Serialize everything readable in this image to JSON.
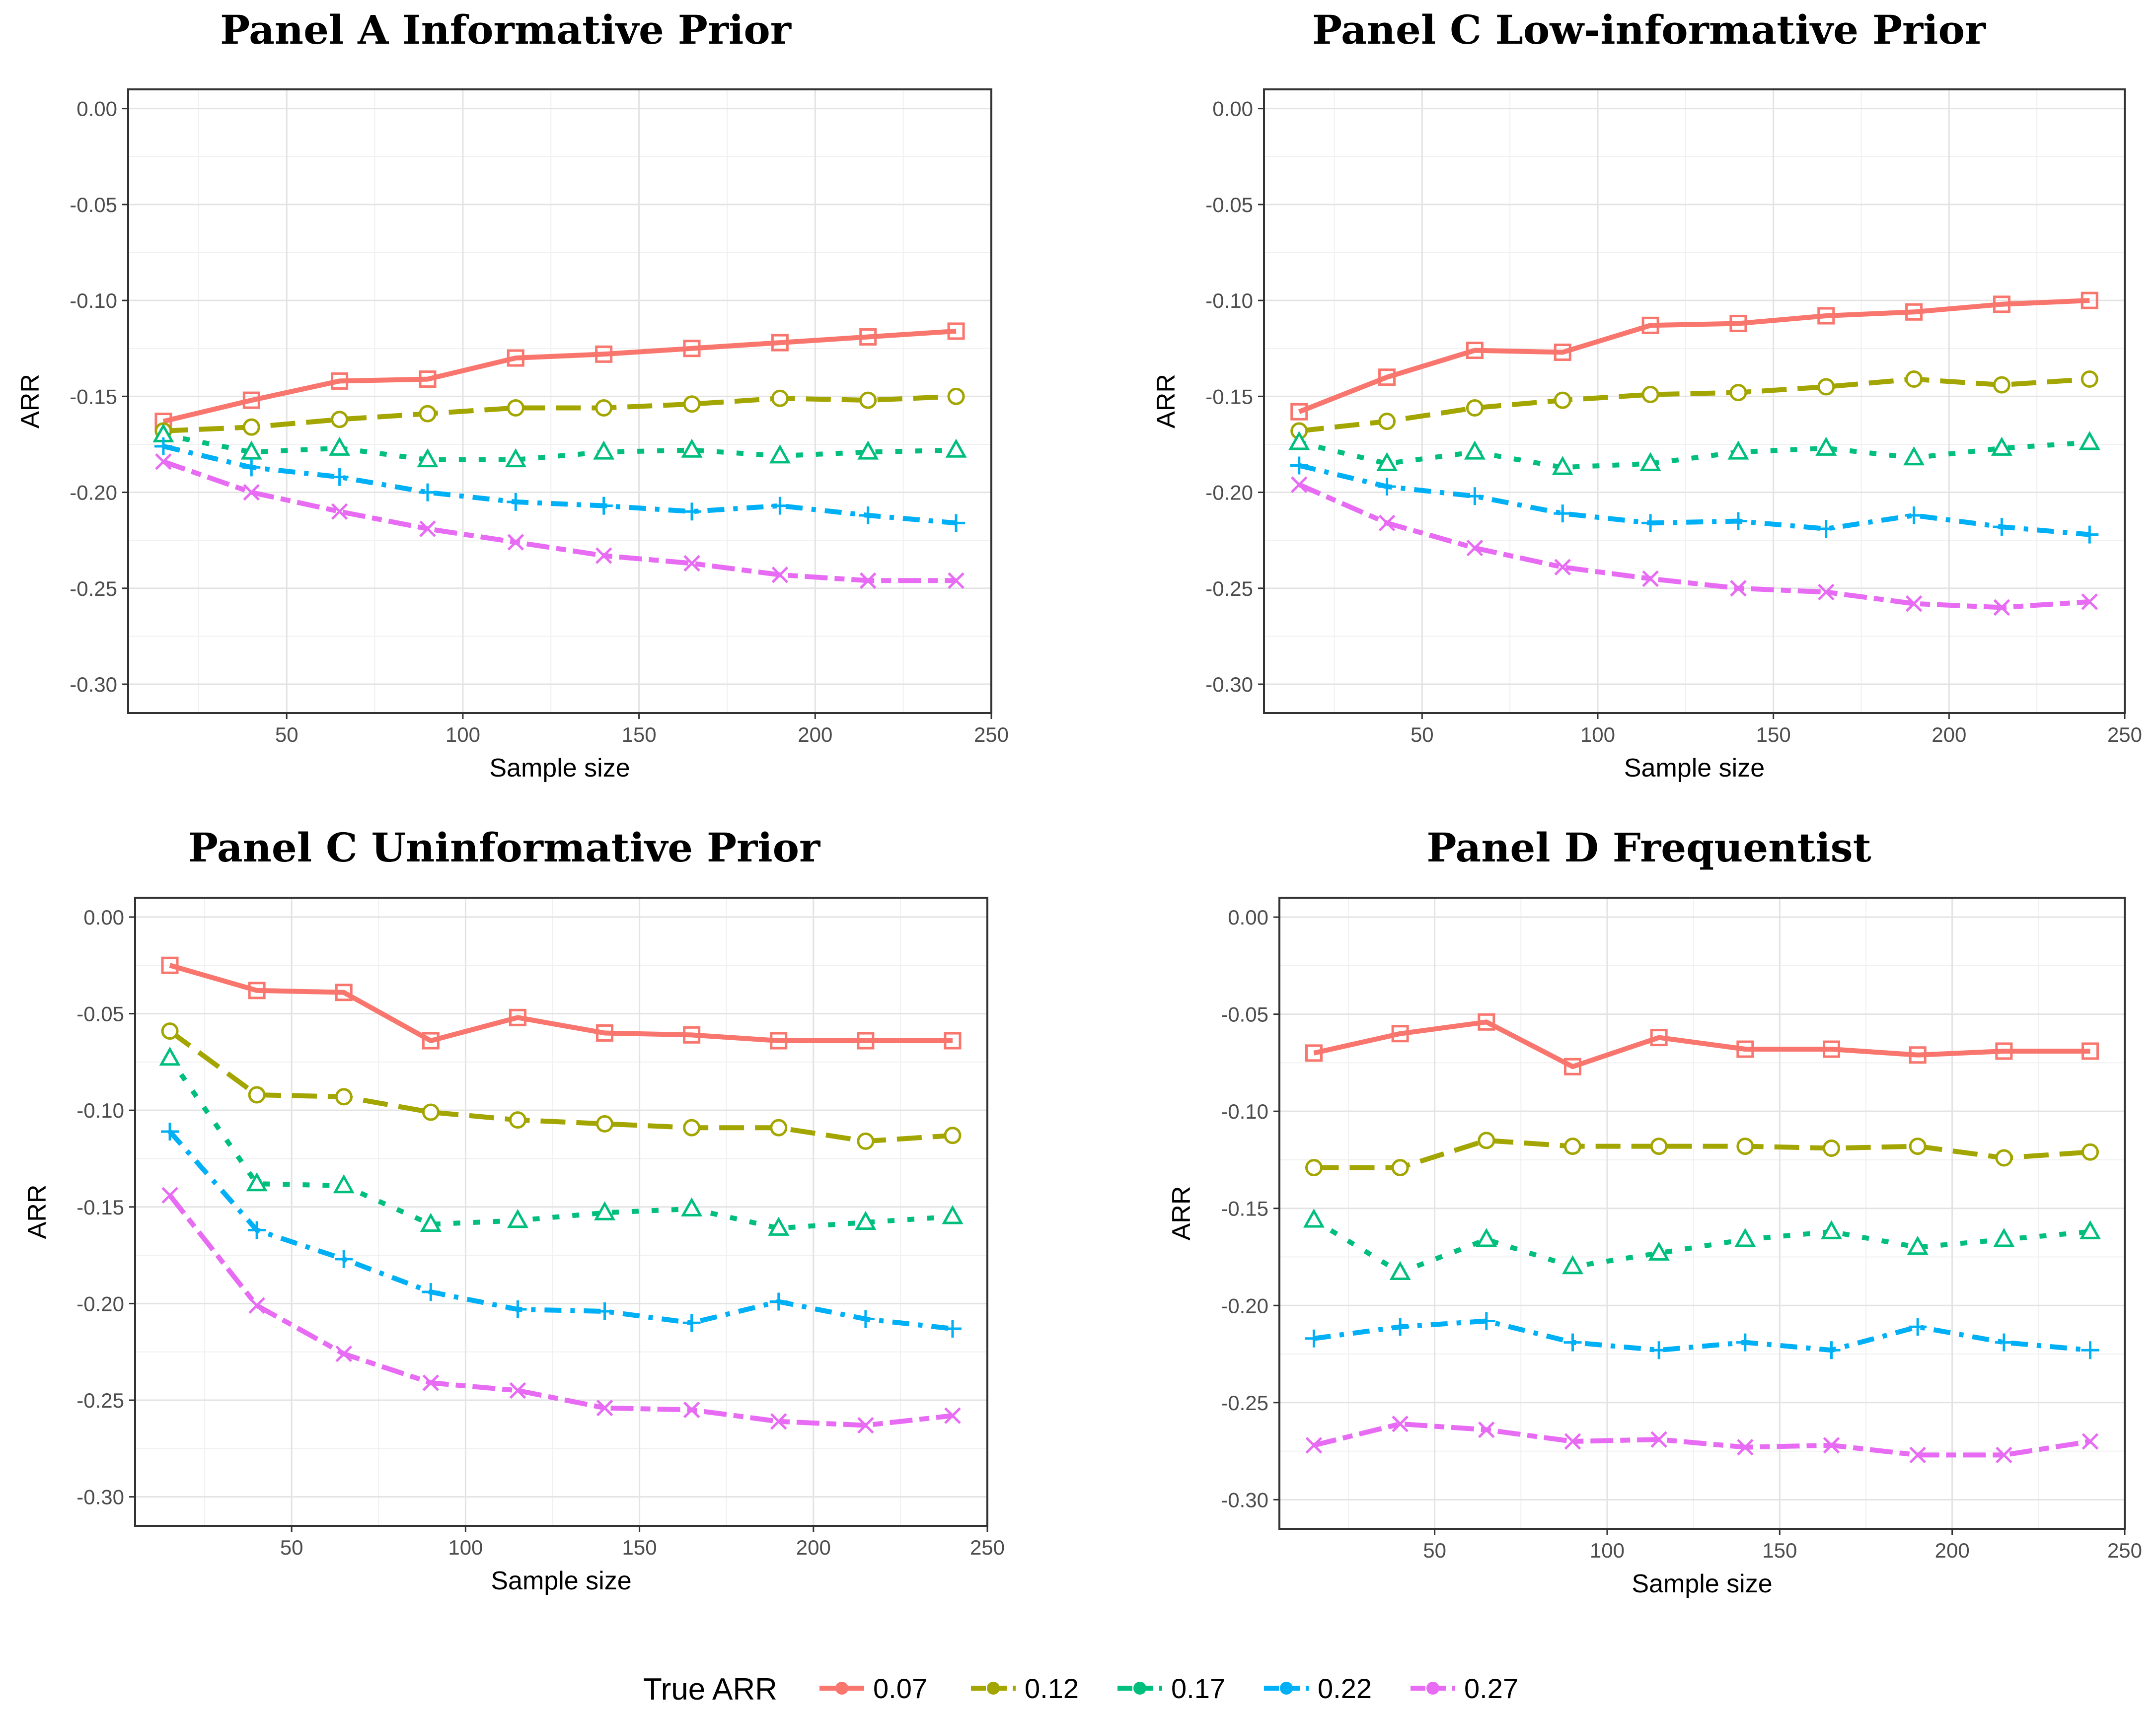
{
  "legend": {
    "title": "True ARR",
    "position": "bottom"
  },
  "chart_data": [
    {
      "type": "line",
      "title": "Panel A Informative Prior",
      "xlabel": "Sample size",
      "ylabel": "ARR",
      "xlim": [
        5,
        250
      ],
      "ylim": [
        -0.315,
        0.01
      ],
      "xticks": [
        50,
        100,
        150,
        200,
        250
      ],
      "yticks": [
        0.0,
        -0.05,
        -0.1,
        -0.15,
        -0.2,
        -0.25,
        -0.3
      ],
      "ytick_labels": [
        "0.00",
        "-0.05",
        "-0.10",
        "-0.15",
        "-0.20",
        "-0.25",
        "-0.30"
      ],
      "grid": true,
      "x": [
        15,
        40,
        65,
        90,
        115,
        140,
        165,
        190,
        215,
        240
      ],
      "series": [
        {
          "name": "0.07",
          "color": "#F8766D",
          "dash": "solid",
          "marker": "square",
          "values": [
            -0.163,
            -0.152,
            -0.142,
            -0.141,
            -0.13,
            -0.128,
            -0.125,
            -0.122,
            -0.119,
            -0.116
          ]
        },
        {
          "name": "0.12",
          "color": "#A3A500",
          "dash": "longdash",
          "marker": "circle",
          "values": [
            -0.168,
            -0.166,
            -0.162,
            -0.159,
            -0.156,
            -0.156,
            -0.154,
            -0.151,
            -0.152,
            -0.15
          ]
        },
        {
          "name": "0.17",
          "color": "#00BF7D",
          "dash": "dotted",
          "marker": "triangle",
          "values": [
            -0.17,
            -0.179,
            -0.177,
            -0.183,
            -0.183,
            -0.179,
            -0.178,
            -0.181,
            -0.179,
            -0.178
          ]
        },
        {
          "name": "0.22",
          "color": "#00B0F6",
          "dash": "dashdot",
          "marker": "plus",
          "values": [
            -0.176,
            -0.187,
            -0.192,
            -0.2,
            -0.205,
            -0.207,
            -0.21,
            -0.207,
            -0.212,
            -0.216
          ]
        },
        {
          "name": "0.27",
          "color": "#E76BF3",
          "dash": "twodash",
          "marker": "cross",
          "values": [
            -0.184,
            -0.2,
            -0.21,
            -0.219,
            -0.226,
            -0.233,
            -0.237,
            -0.243,
            -0.246,
            -0.246
          ]
        }
      ]
    },
    {
      "type": "line",
      "title": "Panel C Low-informative Prior",
      "xlabel": "Sample size",
      "ylabel": "ARR",
      "xlim": [
        5,
        250
      ],
      "ylim": [
        -0.315,
        0.01
      ],
      "xticks": [
        50,
        100,
        150,
        200,
        250
      ],
      "yticks": [
        0.0,
        -0.05,
        -0.1,
        -0.15,
        -0.2,
        -0.25,
        -0.3
      ],
      "ytick_labels": [
        "0.00",
        "-0.05",
        "-0.10",
        "-0.15",
        "-0.20",
        "-0.25",
        "-0.30"
      ],
      "grid": true,
      "x": [
        15,
        40,
        65,
        90,
        115,
        140,
        165,
        190,
        215,
        240
      ],
      "series": [
        {
          "name": "0.07",
          "color": "#F8766D",
          "dash": "solid",
          "marker": "square",
          "values": [
            -0.158,
            -0.14,
            -0.126,
            -0.127,
            -0.113,
            -0.112,
            -0.108,
            -0.106,
            -0.102,
            -0.1
          ]
        },
        {
          "name": "0.12",
          "color": "#A3A500",
          "dash": "longdash",
          "marker": "circle",
          "values": [
            -0.168,
            -0.163,
            -0.156,
            -0.152,
            -0.149,
            -0.148,
            -0.145,
            -0.141,
            -0.144,
            -0.141
          ]
        },
        {
          "name": "0.17",
          "color": "#00BF7D",
          "dash": "dotted",
          "marker": "triangle",
          "values": [
            -0.174,
            -0.185,
            -0.179,
            -0.187,
            -0.185,
            -0.179,
            -0.177,
            -0.182,
            -0.177,
            -0.174
          ]
        },
        {
          "name": "0.22",
          "color": "#00B0F6",
          "dash": "dashdot",
          "marker": "plus",
          "values": [
            -0.186,
            -0.197,
            -0.202,
            -0.211,
            -0.216,
            -0.215,
            -0.219,
            -0.212,
            -0.218,
            -0.222
          ]
        },
        {
          "name": "0.27",
          "color": "#E76BF3",
          "dash": "twodash",
          "marker": "cross",
          "values": [
            -0.196,
            -0.216,
            -0.229,
            -0.239,
            -0.245,
            -0.25,
            -0.252,
            -0.258,
            -0.26,
            -0.257
          ]
        }
      ]
    },
    {
      "type": "line",
      "title": "Panel C Uninformative Prior",
      "xlabel": "Sample size",
      "ylabel": "ARR",
      "xlim": [
        5,
        250
      ],
      "ylim": [
        -0.315,
        0.01
      ],
      "xticks": [
        50,
        100,
        150,
        200,
        250
      ],
      "yticks": [
        0.0,
        -0.05,
        -0.1,
        -0.15,
        -0.2,
        -0.25,
        -0.3
      ],
      "ytick_labels": [
        "0.00",
        "-0.05",
        "-0.10",
        "-0.15",
        "-0.20",
        "-0.25",
        "-0.30"
      ],
      "grid": true,
      "x": [
        15,
        40,
        65,
        90,
        115,
        140,
        165,
        190,
        215,
        240
      ],
      "series": [
        {
          "name": "0.07",
          "color": "#F8766D",
          "dash": "solid",
          "marker": "square",
          "values": [
            -0.025,
            -0.038,
            -0.039,
            -0.064,
            -0.052,
            -0.06,
            -0.061,
            -0.064,
            -0.064,
            -0.064
          ]
        },
        {
          "name": "0.12",
          "color": "#A3A500",
          "dash": "longdash",
          "marker": "circle",
          "values": [
            -0.059,
            -0.092,
            -0.093,
            -0.101,
            -0.105,
            -0.107,
            -0.109,
            -0.109,
            -0.116,
            -0.113
          ]
        },
        {
          "name": "0.17",
          "color": "#00BF7D",
          "dash": "dotted",
          "marker": "triangle",
          "values": [
            -0.073,
            -0.138,
            -0.139,
            -0.159,
            -0.157,
            -0.153,
            -0.151,
            -0.161,
            -0.158,
            -0.155
          ]
        },
        {
          "name": "0.22",
          "color": "#00B0F6",
          "dash": "dashdot",
          "marker": "plus",
          "values": [
            -0.111,
            -0.162,
            -0.177,
            -0.194,
            -0.203,
            -0.204,
            -0.21,
            -0.199,
            -0.208,
            -0.213
          ]
        },
        {
          "name": "0.27",
          "color": "#E76BF3",
          "dash": "twodash",
          "marker": "cross",
          "values": [
            -0.144,
            -0.201,
            -0.226,
            -0.241,
            -0.245,
            -0.254,
            -0.255,
            -0.261,
            -0.263,
            -0.258
          ]
        }
      ]
    },
    {
      "type": "line",
      "title": "Panel D Frequentist",
      "xlabel": "Sample size",
      "ylabel": "ARR",
      "xlim": [
        5,
        250
      ],
      "ylim": [
        -0.315,
        0.01
      ],
      "xticks": [
        50,
        100,
        150,
        200,
        250
      ],
      "yticks": [
        0.0,
        -0.05,
        -0.1,
        -0.15,
        -0.2,
        -0.25,
        -0.3
      ],
      "ytick_labels": [
        "0.00",
        "-0.05",
        "-0.10",
        "-0.15",
        "-0.20",
        "-0.25",
        "-0.30"
      ],
      "grid": true,
      "x": [
        15,
        40,
        65,
        90,
        115,
        140,
        165,
        190,
        215,
        240
      ],
      "series": [
        {
          "name": "0.07",
          "color": "#F8766D",
          "dash": "solid",
          "marker": "square",
          "values": [
            -0.07,
            -0.06,
            -0.054,
            -0.077,
            -0.062,
            -0.068,
            -0.068,
            -0.071,
            -0.069,
            -0.069
          ]
        },
        {
          "name": "0.12",
          "color": "#A3A500",
          "dash": "longdash",
          "marker": "circle",
          "values": [
            -0.129,
            -0.129,
            -0.115,
            -0.118,
            -0.118,
            -0.118,
            -0.119,
            -0.118,
            -0.124,
            -0.121
          ]
        },
        {
          "name": "0.17",
          "color": "#00BF7D",
          "dash": "dotted",
          "marker": "triangle",
          "values": [
            -0.156,
            -0.183,
            -0.166,
            -0.18,
            -0.173,
            -0.166,
            -0.162,
            -0.17,
            -0.166,
            -0.162
          ]
        },
        {
          "name": "0.22",
          "color": "#00B0F6",
          "dash": "dashdot",
          "marker": "plus",
          "values": [
            -0.217,
            -0.211,
            -0.208,
            -0.219,
            -0.223,
            -0.219,
            -0.223,
            -0.211,
            -0.219,
            -0.223
          ]
        },
        {
          "name": "0.27",
          "color": "#E76BF3",
          "dash": "twodash",
          "marker": "cross",
          "values": [
            -0.272,
            -0.261,
            -0.264,
            -0.27,
            -0.269,
            -0.273,
            -0.272,
            -0.277,
            -0.277,
            -0.27
          ]
        }
      ]
    }
  ]
}
